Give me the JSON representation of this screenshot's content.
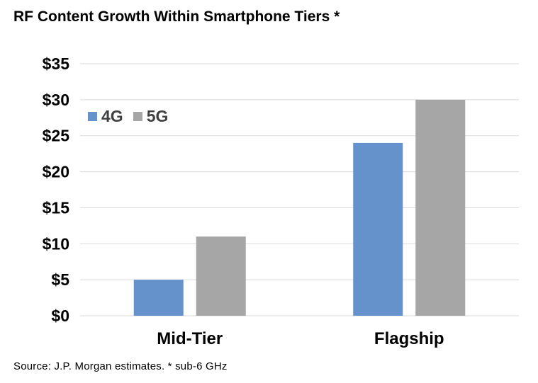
{
  "title": "RF Content Growth Within Smartphone Tiers *",
  "source": "Source:  J.P. Morgan estimates.  * sub-6 GHz",
  "colors": {
    "4G": "#6592cb",
    "5G": "#a6a6a6",
    "grid": "#d9d9d9",
    "axis_text": "#000000",
    "legend_text": "#404040"
  },
  "legend": {
    "items": [
      {
        "label": "4G",
        "color": "#6592cb"
      },
      {
        "label": "5G",
        "color": "#a6a6a6"
      }
    ]
  },
  "chart_data": {
    "type": "bar",
    "title": "RF Content Growth Within Smartphone Tiers *",
    "categories": [
      "Mid-Tier",
      "Flagship"
    ],
    "series": [
      {
        "name": "4G",
        "values": [
          5,
          24
        ]
      },
      {
        "name": "5G",
        "values": [
          11,
          30
        ]
      }
    ],
    "ylim": [
      0,
      35
    ],
    "yticks": [
      0,
      5,
      10,
      15,
      20,
      25,
      30,
      35
    ],
    "ytick_labels": [
      "$0",
      "$5",
      "$10",
      "$15",
      "$20",
      "$25",
      "$30",
      "$35"
    ],
    "xlabel": "",
    "ylabel": "",
    "grid": true,
    "legend_position": "top-left"
  }
}
